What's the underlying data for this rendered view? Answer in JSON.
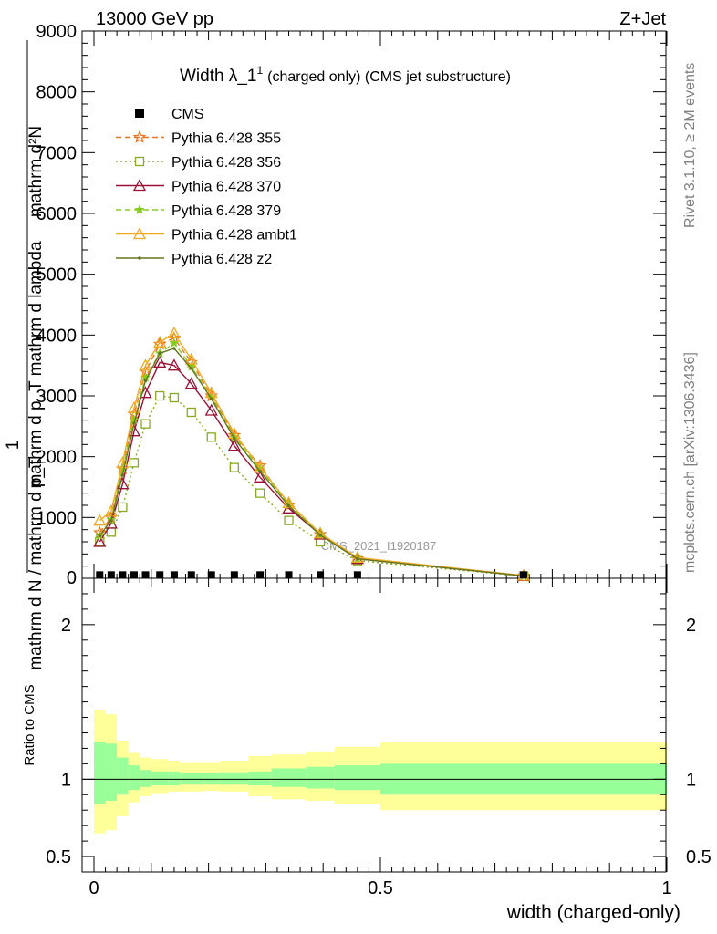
{
  "header": {
    "left": "13000 GeV pp",
    "right": "Z+Jet"
  },
  "side_text": {
    "rivet": "Rivet 3.1.10, ≥ 2M events",
    "mcplots": "mcplots.cern.ch [arXiv:1306.3436]"
  },
  "watermark": "CMS_2021_I1920187",
  "chart_data": {
    "type": "line",
    "title_main": "Width λ_1",
    "title_sup": "1",
    "title_sub": "(charged only) (CMS jet substructure)",
    "ylabel_top_1": "mathrm d²N",
    "ylabel_top_2": "mathrm d p_T mathrm d lambda",
    "ylabel_frac_num": "1",
    "ylabel_bottom": "mathrm d N / mathrm d p_T",
    "xlabel": "width (charged-only)",
    "ratio_ylabel": "Ratio to CMS",
    "xlim": [
      0,
      1
    ],
    "ylim": [
      0,
      9000
    ],
    "ratio_ylim": [
      0.4,
      2.3
    ],
    "main_yticks": [
      "1000",
      "2000",
      "3000",
      "4000",
      "5000",
      "6000",
      "7000",
      "8000",
      "9000"
    ],
    "ratio_yticks": [
      "0.5",
      "1",
      "2"
    ],
    "xticks": [
      "0",
      "0.5",
      "1"
    ],
    "legend_position": "top-left",
    "cms_points": {
      "name": "CMS",
      "x": [
        0.01,
        0.03,
        0.05,
        0.07,
        0.09,
        0.115,
        0.14,
        0.17,
        0.205,
        0.245,
        0.29,
        0.34,
        0.395,
        0.46,
        0.75
      ],
      "values": [
        25,
        25,
        25,
        25,
        25,
        25,
        25,
        25,
        25,
        25,
        25,
        25,
        25,
        25,
        25
      ]
    },
    "x": [
      0.01,
      0.03,
      0.05,
      0.07,
      0.09,
      0.115,
      0.14,
      0.17,
      0.205,
      0.245,
      0.29,
      0.34,
      0.395,
      0.46,
      0.75
    ],
    "series": [
      {
        "name": "Pythia 6.428 355",
        "color": "#ee7722",
        "style": "dashed",
        "marker": "star",
        "values": [
          750,
          1000,
          1800,
          2700,
          3400,
          3850,
          3950,
          3550,
          3000,
          2350,
          1850,
          1200,
          720,
          320,
          40
        ]
      },
      {
        "name": "Pythia 6.428 356",
        "color": "#88aa22",
        "style": "dotted",
        "marker": "open-square",
        "values": [
          600,
          760,
          1170,
          1900,
          2540,
          3000,
          2970,
          2730,
          2320,
          1820,
          1400,
          950,
          600,
          290,
          35
        ]
      },
      {
        "name": "Pythia 6.428 370",
        "color": "#991133",
        "style": "solid",
        "marker": "open-triangle",
        "values": [
          600,
          900,
          1550,
          2420,
          3050,
          3550,
          3500,
          3200,
          2760,
          2180,
          1660,
          1150,
          720,
          320,
          40
        ]
      },
      {
        "name": "Pythia 6.428 379",
        "color": "#88cc22",
        "style": "dashed",
        "marker": "small-star",
        "values": [
          700,
          960,
          1800,
          2600,
          3300,
          3700,
          3870,
          3480,
          2980,
          2320,
          1800,
          1210,
          720,
          320,
          40
        ]
      },
      {
        "name": "Pythia 6.428 ambt1",
        "color": "#eeaa22",
        "style": "solid",
        "marker": "open-triangle",
        "values": [
          950,
          1100,
          1900,
          2800,
          3500,
          3880,
          4030,
          3600,
          3050,
          2380,
          1820,
          1240,
          740,
          340,
          45
        ]
      },
      {
        "name": "Pythia 6.428 z2",
        "color": "#667722",
        "style": "solid",
        "marker": "dot",
        "values": [
          700,
          950,
          1700,
          2550,
          3250,
          3700,
          3780,
          3450,
          2950,
          2300,
          1760,
          1190,
          710,
          320,
          40
        ]
      }
    ],
    "ratio_bands": {
      "edges": [
        0,
        0.02,
        0.04,
        0.06,
        0.08,
        0.1,
        0.13,
        0.15,
        0.19,
        0.22,
        0.27,
        0.31,
        0.37,
        0.42,
        0.5,
        1.0
      ],
      "green_low": [
        0.84,
        0.86,
        0.9,
        0.93,
        0.95,
        0.96,
        0.96,
        0.965,
        0.965,
        0.965,
        0.96,
        0.95,
        0.94,
        0.93,
        0.9
      ],
      "green_high": [
        1.24,
        1.23,
        1.14,
        1.09,
        1.06,
        1.05,
        1.05,
        1.04,
        1.04,
        1.045,
        1.05,
        1.07,
        1.08,
        1.09,
        1.1
      ],
      "yellow_low": [
        0.65,
        0.67,
        0.76,
        0.85,
        0.89,
        0.91,
        0.92,
        0.92,
        0.925,
        0.92,
        0.89,
        0.87,
        0.86,
        0.84,
        0.8
      ],
      "yellow_high": [
        1.45,
        1.42,
        1.25,
        1.17,
        1.14,
        1.13,
        1.12,
        1.11,
        1.11,
        1.12,
        1.15,
        1.16,
        1.18,
        1.21,
        1.24
      ]
    }
  }
}
